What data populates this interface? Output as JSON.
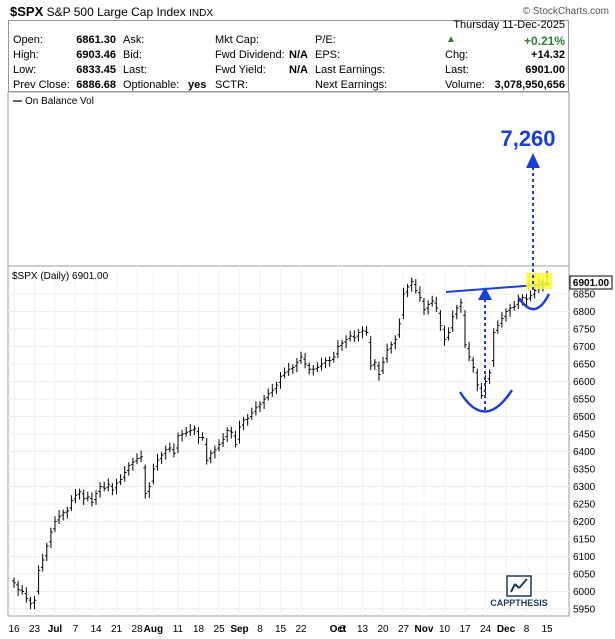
{
  "header": {
    "symbol": "$SPX",
    "name": "S&P 500 Large Cap Index",
    "exchange": "INDX",
    "brand": "© StockCharts.com",
    "date": "Thursday  11-Dec-2025"
  },
  "quote": {
    "open_label": "Open:",
    "open": "6861.30",
    "high_label": "High:",
    "high": "6903.46",
    "low_label": "Low:",
    "low": "6833.45",
    "prev_label": "Prev Close:",
    "prev": "6886.68",
    "ask_label": "Ask:",
    "bid_label": "Bid:",
    "last_label": "Last:",
    "optionable_label": "Optionable:",
    "optionable": "yes",
    "mktcap_label": "Mkt Cap:",
    "fwddiv_label": "Fwd Dividend:",
    "fwddiv": "N/A",
    "fwdyield_label": "Fwd Yield:",
    "fwdyield": "N/A",
    "sctr_label": "SCTR:",
    "pe_label": "P/E:",
    "eps_label": "EPS:",
    "lastearn_label": "Last Earnings:",
    "nextearn_label": "Next Earnings:",
    "pct_change": "+0.21%",
    "chg_label": "Chg:",
    "chg": "+14.32",
    "last_price_label": "Last:",
    "last_price": "6901.00",
    "volume_label": "Volume:",
    "volume": "3,078,950,656",
    "up_color": "#2e7d32"
  },
  "chart_data": {
    "type": "ohlc",
    "indicator_label": "On Balance Vol",
    "price_label": "$SPX (Daily) 6901.00",
    "last_value_label": "6901.00",
    "target_label": "7,260",
    "target_value": 7260,
    "watermark": "CAPPTHESIS",
    "ylim": [
      5930,
      6930
    ],
    "y_ticks": [
      5950,
      6000,
      6050,
      6100,
      6150,
      6200,
      6250,
      6300,
      6350,
      6400,
      6450,
      6500,
      6550,
      6600,
      6650,
      6700,
      6750,
      6800,
      6850
    ],
    "x_labels": [
      {
        "label": "16",
        "i": 0
      },
      {
        "label": "23",
        "i": 5
      },
      {
        "label": "Jul",
        "i": 10,
        "bold": true
      },
      {
        "label": "7",
        "i": 15
      },
      {
        "label": "14",
        "i": 20
      },
      {
        "label": "21",
        "i": 25
      },
      {
        "label": "28",
        "i": 30
      },
      {
        "label": "Aug",
        "i": 34,
        "bold": true
      },
      {
        "label": "11",
        "i": 40
      },
      {
        "label": "18",
        "i": 45
      },
      {
        "label": "25",
        "i": 50
      },
      {
        "label": "Sep",
        "i": 55,
        "bold": true
      },
      {
        "label": "8",
        "i": 60
      },
      {
        "label": "15",
        "i": 65
      },
      {
        "label": "22",
        "i": 70
      },
      {
        "label": "Oct",
        "i": 79,
        "bold": true
      },
      {
        "label": "6",
        "i": 80
      },
      {
        "label": "13",
        "i": 85
      },
      {
        "label": "20",
        "i": 90
      },
      {
        "label": "27",
        "i": 95
      },
      {
        "label": "Nov",
        "i": 100,
        "bold": true
      },
      {
        "label": "10",
        "i": 105
      },
      {
        "label": "17",
        "i": 110
      },
      {
        "label": "24",
        "i": 115
      },
      {
        "label": "Dec",
        "i": 120,
        "bold": true
      },
      {
        "label": "8",
        "i": 125
      },
      {
        "label": "15",
        "i": 130
      }
    ],
    "closes": [
      6025,
      6005,
      6000,
      5980,
      5965,
      5975,
      6060,
      6090,
      6130,
      6170,
      6200,
      6215,
      6225,
      6230,
      6260,
      6275,
      6285,
      6265,
      6270,
      6255,
      6280,
      6300,
      6295,
      6305,
      6290,
      6310,
      6320,
      6340,
      6360,
      6370,
      6380,
      6385,
      6280,
      6300,
      6350,
      6375,
      6390,
      6405,
      6410,
      6395,
      6445,
      6450,
      6455,
      6460,
      6465,
      6440,
      6440,
      6375,
      6395,
      6405,
      6420,
      6435,
      6460,
      6455,
      6420,
      6470,
      6490,
      6495,
      6510,
      6525,
      6535,
      6550,
      6565,
      6575,
      6590,
      6615,
      6625,
      6635,
      6640,
      6655,
      6670,
      6650,
      6635,
      6635,
      6640,
      6650,
      6660,
      6660,
      6670,
      6700,
      6710,
      6720,
      6730,
      6725,
      6740,
      6745,
      6740,
      6645,
      6655,
      6620,
      6655,
      6690,
      6705,
      6720,
      6765,
      6850,
      6870,
      6885,
      6860,
      6840,
      6805,
      6820,
      6830,
      6810,
      6760,
      6720,
      6740,
      6785,
      6810,
      6825,
      6705,
      6670,
      6640,
      6590,
      6560,
      6600,
      6625,
      6740,
      6760,
      6780,
      6800,
      6810,
      6815,
      6830,
      6840,
      6835,
      6845,
      6860,
      6885,
      6875,
      6901
    ]
  }
}
